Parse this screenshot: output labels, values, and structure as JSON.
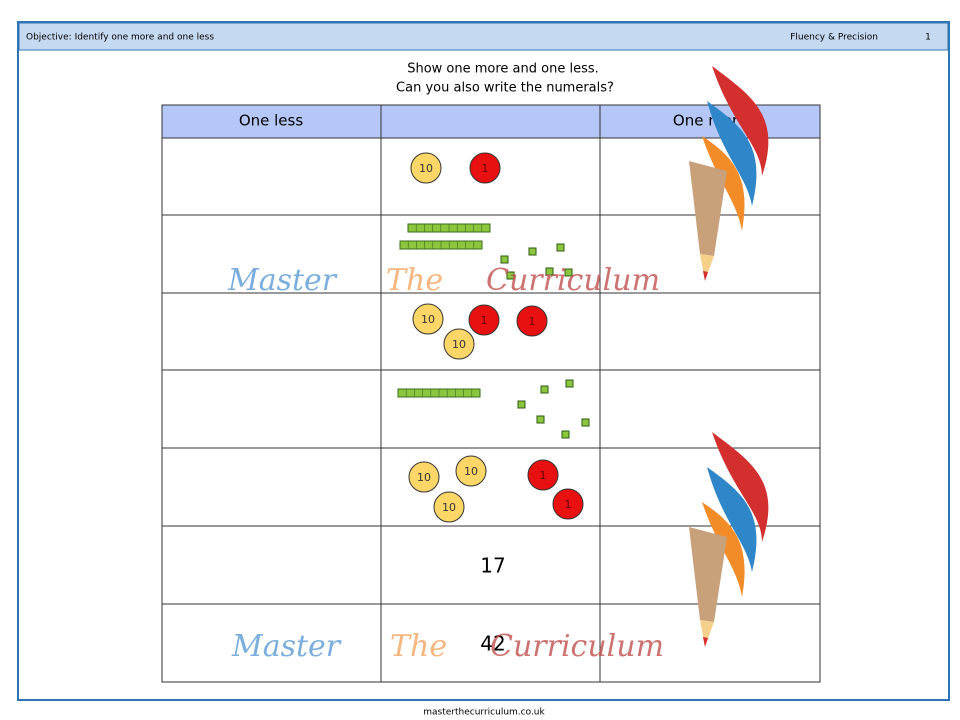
{
  "header": {
    "objective": "Objective: Identify one more and one less",
    "section": "Fluency & Precision",
    "page": "1"
  },
  "instructions": [
    "Show one more and one less.",
    "Can you also write the numerals?"
  ],
  "table": {
    "headers": [
      "One less",
      "One more"
    ],
    "rows": [
      {
        "counters": [
          "10",
          "1"
        ]
      },
      null,
      {
        "counters": [
          "10",
          "10",
          "1",
          "1"
        ]
      },
      null,
      {
        "counters": [
          "10",
          "10",
          "10",
          "1",
          "1"
        ]
      },
      {
        "number": "17"
      },
      {
        "number": "42"
      }
    ]
  },
  "watermark": [
    "Master",
    "The",
    "Curriculum"
  ],
  "footer": "masterthecurriculum.co.uk"
}
